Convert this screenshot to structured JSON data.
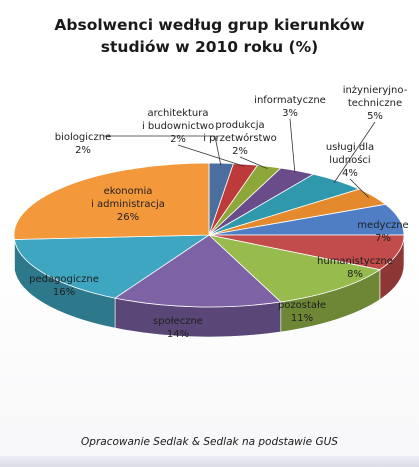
{
  "chart_data": {
    "type": "pie",
    "title_lines": [
      "Absolwenci według grup kierunków",
      "studiów w 2010 roku (%)"
    ],
    "categories": [
      "biologiczne",
      "architektura i budownictwo",
      "produkcja i przetwórstwo",
      "informatyczne",
      "inżynieryjno-techniczne",
      "usługi dla ludności",
      "medyczne",
      "humanistyczne",
      "pozostałe",
      "społeczne",
      "pedagogiczne",
      "ekonomia i administracja"
    ],
    "values": [
      2,
      2,
      2,
      3,
      5,
      4,
      7,
      8,
      11,
      14,
      16,
      26
    ],
    "labels": [
      {
        "lines": [
          "biologiczne",
          "2%"
        ]
      },
      {
        "lines": [
          "architektura",
          "i budownictwo",
          "2%"
        ]
      },
      {
        "lines": [
          "produkcja",
          "i przetwórstwo",
          "2%"
        ]
      },
      {
        "lines": [
          "informatyczne",
          "3%"
        ]
      },
      {
        "lines": [
          "inżynieryjno-",
          "techniczne",
          "5%"
        ]
      },
      {
        "lines": [
          "usługi dla",
          "ludności",
          "4%"
        ]
      },
      {
        "lines": [
          "medyczne",
          "7%"
        ]
      },
      {
        "lines": [
          "humanistyczne",
          "8%"
        ]
      },
      {
        "lines": [
          "pozostałe",
          "11%"
        ]
      },
      {
        "lines": [
          "społeczne",
          "14%"
        ]
      },
      {
        "lines": [
          "pedagogiczne",
          "16%"
        ]
      },
      {
        "lines": [
          "ekonomia",
          "i administracja",
          "26%"
        ]
      }
    ],
    "colors": [
      "#4a6f9f",
      "#bd3a3a",
      "#8da838",
      "#6a4c8a",
      "#2f98ac",
      "#e48a2c",
      "#4f7ec4",
      "#c24b4b",
      "#97bb4c",
      "#7d62a5",
      "#3ea6c0",
      "#f3993c"
    ]
  },
  "footer": {
    "credit": "Opracowanie Sedlak & Sedlak na podstawie GUS"
  }
}
